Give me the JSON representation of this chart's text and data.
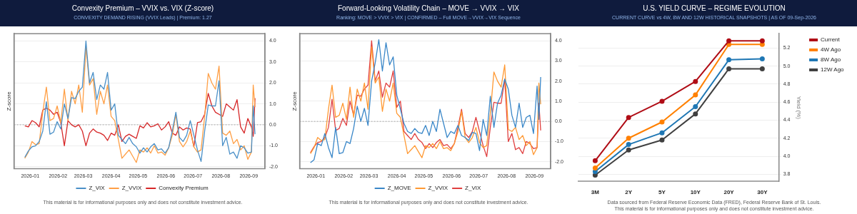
{
  "chart_data": [
    {
      "type": "line",
      "title": "Convexity Premium – VVIX vs. VIX (Z-score)",
      "subtitle": "CONVEXITY DEMAND RISING (VVIX Leads)  |  Premium: 1.27",
      "ylabel": "Z-score",
      "x": [
        "2025-12-26",
        "2025-12-30",
        "2026-01-03",
        "2026-01-07",
        "2026-01-11",
        "2026-01-15",
        "2026-01-19",
        "2026-01-23",
        "2026-01-27",
        "2026-01-31",
        "2026-02-04",
        "2026-02-08",
        "2026-02-12",
        "2026-02-16",
        "2026-02-20",
        "2026-02-24",
        "2026-02-28",
        "2026-03-04",
        "2026-03-08",
        "2026-03-12",
        "2026-03-16",
        "2026-03-20",
        "2026-03-24",
        "2026-03-28",
        "2026-04-01",
        "2026-04-05",
        "2026-04-09",
        "2026-04-13",
        "2026-04-17",
        "2026-04-21",
        "2026-04-25",
        "2026-04-29",
        "2026-05-03",
        "2026-05-07",
        "2026-05-11",
        "2026-05-15",
        "2026-05-19",
        "2026-05-23",
        "2026-05-27",
        "2026-05-31",
        "2026-06-04",
        "2026-06-08",
        "2026-06-12",
        "2026-06-16",
        "2026-06-20",
        "2026-06-24",
        "2026-06-28",
        "2026-07-02",
        "2026-07-06",
        "2026-07-10",
        "2026-07-14",
        "2026-07-18",
        "2026-07-22",
        "2026-07-26",
        "2026-07-30",
        "2026-08-03",
        "2026-08-07",
        "2026-08-11",
        "2026-08-15",
        "2026-08-19",
        "2026-08-23",
        "2026-08-27",
        "2026-08-31",
        "2026-09-04",
        "2026-09-06",
        "2026-09-08"
      ],
      "series": [
        {
          "name": "Z_VIX",
          "color": "#4a90c8",
          "values": [
            -1.55,
            -1.25,
            -1.05,
            -1.0,
            -0.8,
            -0.3,
            1.1,
            -0.45,
            -0.35,
            0.15,
            -0.2,
            1.0,
            0.3,
            1.3,
            1.25,
            1.6,
            1.8,
            4.0,
            2.0,
            2.5,
            1.2,
            1.9,
            1.7,
            2.5,
            0.7,
            1.0,
            -0.5,
            -0.7,
            -0.9,
            -0.6,
            -0.9,
            -1.05,
            -1.35,
            -1.1,
            -1.3,
            -1.05,
            -0.9,
            -1.2,
            -1.15,
            -1.35,
            -1.1,
            -0.3,
            0.6,
            -0.6,
            -0.8,
            -0.5,
            0.2,
            -0.5,
            -1.2,
            -1.75,
            -0.3,
            0.95,
            0.9,
            0.9,
            2.1,
            -1.0,
            -0.6,
            -1.4,
            -1.3,
            -1.6,
            -1.0,
            -1.1,
            -1.35,
            -1.3,
            0.9,
            -0.45
          ]
        },
        {
          "name": "Z_VVIX",
          "color": "#ff9f45",
          "values": [
            -1.6,
            -1.3,
            -0.8,
            -0.95,
            -0.9,
            0.6,
            1.8,
            0.2,
            0.3,
            0.9,
            0.1,
            1.7,
            0.2,
            1.6,
            1.0,
            1.9,
            0.6,
            3.7,
            1.9,
            2.2,
            0.5,
            1.6,
            1.0,
            1.9,
            0.4,
            0.2,
            -0.7,
            -1.6,
            -1.4,
            -1.2,
            -1.5,
            -1.8,
            -1.2,
            -1.3,
            -1.1,
            -1.35,
            -1.0,
            -1.35,
            -1.3,
            -1.45,
            -1.1,
            -0.5,
            0.5,
            -0.8,
            -1.05,
            -0.8,
            -0.3,
            -1.05,
            -1.3,
            -1.2,
            0.4,
            2.45,
            2.0,
            1.7,
            2.8,
            -0.4,
            -0.5,
            -0.3,
            -0.9,
            -0.7,
            -1.2,
            -1.0,
            -1.65,
            -1.3,
            1.9,
            0.85
          ]
        },
        {
          "name": "Convexity Premium",
          "color": "#d62728",
          "values": [
            -0.05,
            -0.1,
            0.2,
            0.1,
            -0.1,
            0.7,
            0.8,
            0.7,
            0.5,
            0.6,
            0.1,
            -1.0,
            0.2,
            0.0,
            -0.1,
            0.0,
            -0.3,
            -1.0,
            -0.4,
            -0.2,
            -0.35,
            -0.4,
            -0.5,
            -0.75,
            -0.4,
            -0.5,
            0.0,
            -0.8,
            -0.55,
            -0.45,
            -0.55,
            -0.65,
            -0.05,
            -0.15,
            0.1,
            -0.1,
            -0.05,
            0.05,
            -0.25,
            -0.1,
            0.15,
            -0.4,
            -0.5,
            -0.1,
            -0.25,
            -0.15,
            -0.2,
            -1.05,
            0.1,
            0.15,
            0.5,
            1.5,
            0.9,
            0.6,
            0.5,
            0.4,
            1.0,
            0.85,
            0.7,
            1.2,
            -0.1,
            -0.4,
            0.3,
            -0.1,
            -0.55,
            1.27
          ]
        }
      ],
      "xlim": [
        "2025-12-14",
        "2026-09-19"
      ],
      "xticks": [
        "2026-01",
        "2026-02",
        "2026-03",
        "2026-04",
        "2026-05",
        "2026-06",
        "2026-07",
        "2026-08",
        "2026-09"
      ],
      "ylim": [
        -2.1,
        4.35
      ],
      "yticks": [
        {
          "value": -2,
          "label": "-2.0"
        },
        {
          "value": -1,
          "label": "-1.0"
        },
        {
          "value": 0,
          "label": "0.0"
        },
        {
          "value": 1,
          "label": "1.0"
        },
        {
          "value": 2,
          "label": "2.0"
        },
        {
          "value": 3,
          "label": "3.0"
        },
        {
          "value": 4,
          "label": "4.0"
        }
      ],
      "ref_lines": [
        {
          "axis": "y",
          "value": 0,
          "color": "#aaaaaa",
          "line_style": "dotted"
        }
      ],
      "grid": "y",
      "legend": "bottom",
      "marker": "none",
      "line_style": "solid",
      "annotations": [
        "This material is for informational purposes only and does not constitute investment advice."
      ]
    },
    {
      "type": "line",
      "title": "Forward-Looking Volatility Chain – MOVE → VVIX → VIX",
      "subtitle": "Ranking: MOVE > VVIX > VIX  |  CONFIRMED – Full MOVE→VVIX→VIX Sequence",
      "ylabel": "Z-score",
      "x": [
        "2025-12-26",
        "2025-12-30",
        "2026-01-03",
        "2026-01-07",
        "2026-01-11",
        "2026-01-15",
        "2026-01-19",
        "2026-01-23",
        "2026-01-27",
        "2026-01-31",
        "2026-02-04",
        "2026-02-08",
        "2026-02-12",
        "2026-02-16",
        "2026-02-20",
        "2026-02-24",
        "2026-02-28",
        "2026-03-04",
        "2026-03-08",
        "2026-03-12",
        "2026-03-16",
        "2026-03-20",
        "2026-03-24",
        "2026-03-28",
        "2026-04-01",
        "2026-04-05",
        "2026-04-09",
        "2026-04-13",
        "2026-04-17",
        "2026-04-21",
        "2026-04-25",
        "2026-04-29",
        "2026-05-03",
        "2026-05-07",
        "2026-05-11",
        "2026-05-15",
        "2026-05-19",
        "2026-05-23",
        "2026-05-27",
        "2026-05-31",
        "2026-06-04",
        "2026-06-08",
        "2026-06-12",
        "2026-06-16",
        "2026-06-20",
        "2026-06-24",
        "2026-06-28",
        "2026-07-02",
        "2026-07-06",
        "2026-07-10",
        "2026-07-14",
        "2026-07-18",
        "2026-07-22",
        "2026-07-26",
        "2026-07-30",
        "2026-08-03",
        "2026-08-07",
        "2026-08-11",
        "2026-08-15",
        "2026-08-19",
        "2026-08-23",
        "2026-08-27",
        "2026-08-31",
        "2026-09-04",
        "2026-09-06",
        "2026-09-08"
      ],
      "series": [
        {
          "name": "Z_MOVE",
          "color": "#3a87c8",
          "values": [
            -2.05,
            -1.9,
            -1.1,
            -1.2,
            -0.6,
            -1.3,
            -1.8,
            -0.3,
            -1.6,
            -1.55,
            -1.0,
            -1.1,
            -0.35,
            0.75,
            0.0,
            0.65,
            -0.2,
            2.0,
            2.9,
            4.05,
            2.5,
            3.9,
            2.8,
            3.2,
            1.3,
            0.6,
            -0.1,
            -0.5,
            -0.6,
            -0.35,
            -0.55,
            -0.6,
            -0.2,
            -0.7,
            0.0,
            -0.5,
            0.6,
            -0.1,
            -0.8,
            -0.5,
            -0.6,
            -0.2,
            -0.7,
            -0.8,
            -0.95,
            -0.55,
            -0.6,
            -1.45,
            0.1,
            -0.7,
            1.25,
            -0.3,
            0.9,
            1.3,
            2.1,
            1.6,
            0.3,
            -0.3,
            0.9,
            -0.3,
            0.2,
            0.3,
            -0.6,
            1.75,
            0.1,
            2.2
          ]
        },
        {
          "name": "Z_VVIX",
          "color": "#ff9933",
          "values": [
            -1.6,
            -1.3,
            -0.8,
            -0.95,
            -0.9,
            0.6,
            1.8,
            0.2,
            0.3,
            0.9,
            0.1,
            1.7,
            0.2,
            1.6,
            1.0,
            1.9,
            0.6,
            3.7,
            1.9,
            2.2,
            0.5,
            1.6,
            1.0,
            1.9,
            0.4,
            0.2,
            -0.7,
            -1.6,
            -1.4,
            -1.2,
            -1.5,
            -1.8,
            -1.2,
            -1.3,
            -1.1,
            -1.35,
            -1.0,
            -1.35,
            -1.3,
            -1.45,
            -1.1,
            -0.5,
            0.5,
            -0.8,
            -1.05,
            -0.8,
            -0.3,
            -1.05,
            -1.3,
            -1.2,
            0.4,
            2.45,
            2.0,
            1.7,
            2.8,
            -0.4,
            -0.5,
            -0.3,
            -0.9,
            -0.7,
            -1.2,
            -1.0,
            -1.65,
            -1.3,
            1.9,
            0.85
          ]
        },
        {
          "name": "Z_VIX",
          "color": "#e04040",
          "values": [
            -1.55,
            -1.25,
            -1.05,
            -1.0,
            -0.8,
            -0.3,
            1.1,
            -0.45,
            -0.35,
            0.15,
            -0.2,
            1.0,
            0.3,
            1.3,
            1.25,
            1.6,
            1.8,
            4.0,
            2.0,
            2.5,
            1.2,
            1.9,
            1.7,
            2.5,
            0.7,
            1.0,
            -0.5,
            -0.7,
            -0.9,
            -0.6,
            -0.9,
            -1.05,
            -1.35,
            -1.1,
            -1.3,
            -1.05,
            -0.9,
            -1.2,
            -1.15,
            -1.35,
            -1.1,
            -0.3,
            0.6,
            -0.6,
            -0.8,
            -0.5,
            0.2,
            -0.5,
            -1.2,
            -1.75,
            -0.3,
            0.95,
            0.9,
            0.9,
            2.1,
            -1.0,
            -0.6,
            -1.4,
            -1.3,
            -1.6,
            -1.0,
            -1.1,
            -1.35,
            -1.3,
            0.9,
            -0.45
          ]
        }
      ],
      "xlim": [
        "2025-12-14",
        "2026-09-19"
      ],
      "xticks": [
        "2026-01",
        "2026-02",
        "2026-03",
        "2026-04",
        "2026-05",
        "2026-06",
        "2026-07",
        "2026-08",
        "2026-09"
      ],
      "ylim": [
        -2.35,
        4.35
      ],
      "yticks": [
        {
          "value": -2,
          "label": "-2.0"
        },
        {
          "value": -1,
          "label": "-1.0"
        },
        {
          "value": 0,
          "label": "0.0"
        },
        {
          "value": 1,
          "label": "1.0"
        },
        {
          "value": 2,
          "label": "2.0"
        },
        {
          "value": 3,
          "label": "3.0"
        },
        {
          "value": 4,
          "label": "4.0"
        }
      ],
      "ref_lines": [
        {
          "axis": "y",
          "value": 0,
          "color": "#aaaaaa",
          "line_style": "dotted"
        }
      ],
      "grid": "y",
      "legend": "bottom",
      "marker": "none",
      "line_style": "solid",
      "annotations": [
        "This material is for informational purposes only and does not constitute investment advice."
      ]
    },
    {
      "type": "line",
      "title": "U.S. YIELD CURVE – REGIME EVOLUTION",
      "subtitle": "CURRENT CURVE vs 4W, 8W AND 12W HISTORICAL SNAPSHOTS  |  AS OF 09-Sep-2026",
      "ylabel": "Yield (%)",
      "categories": [
        "3M",
        "2Y",
        "5Y",
        "10Y",
        "20Y",
        "30Y"
      ],
      "series": [
        {
          "name": "Current",
          "color": "#b00d16",
          "values": [
            3.95,
            4.43,
            4.61,
            4.83,
            5.28,
            5.28
          ]
        },
        {
          "name": "4W Ago",
          "color": "#ff8000",
          "values": [
            3.87,
            4.2,
            4.38,
            4.68,
            5.24,
            5.24
          ]
        },
        {
          "name": "8W Ago",
          "color": "#1f77b4",
          "values": [
            3.83,
            4.13,
            4.26,
            4.55,
            5.07,
            5.08
          ]
        },
        {
          "name": "12W Ago",
          "color": "#404040",
          "values": [
            3.79,
            4.07,
            4.18,
            4.47,
            4.97,
            4.97
          ]
        }
      ],
      "ylim": [
        3.72,
        5.36
      ],
      "yticks": [
        3.8,
        {
          "value": 4,
          "label": "4.0"
        },
        4.2,
        4.4,
        4.6,
        4.8,
        {
          "value": 5,
          "label": "5.0"
        },
        5.2
      ],
      "grid": "y",
      "legend": "top right",
      "marker": "circle",
      "line_style": "solid",
      "annotations": [
        "Data sourced from Federal Reserve Economic Data (FRED), Federal Reserve Bank of St. Louis.",
        "This material is for informational purposes only and does not constitute investment advice."
      ]
    }
  ]
}
